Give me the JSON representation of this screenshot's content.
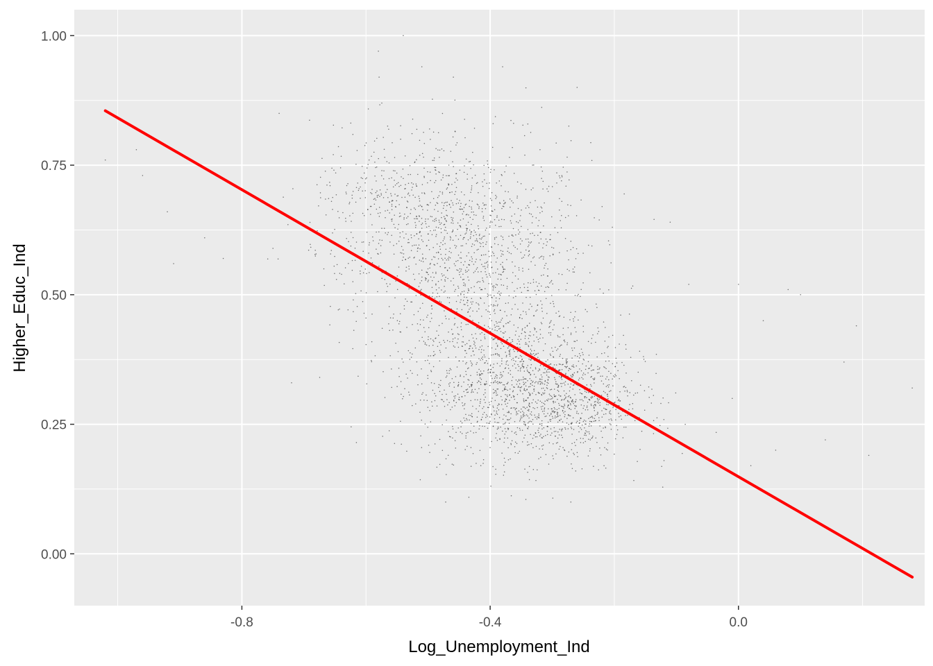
{
  "chart_data": {
    "type": "scatter",
    "title": "",
    "xlabel": "Log_Unemployment_Ind",
    "ylabel": "Higher_Educ_Ind",
    "xlim": [
      -1.07,
      0.3
    ],
    "ylim": [
      -0.1,
      1.05
    ],
    "x_ticks": [
      -0.8,
      -0.4,
      0.0
    ],
    "x_tick_labels": [
      "-0.8",
      "-0.4",
      "0.0"
    ],
    "x_minor_ticks": [
      -1.0,
      -0.6,
      -0.2,
      0.2
    ],
    "y_ticks": [
      0.0,
      0.25,
      0.5,
      0.75,
      1.0
    ],
    "y_tick_labels": [
      "0.00",
      "0.25",
      "0.50",
      "0.75",
      "1.00"
    ],
    "y_minor_ticks": [
      0.125,
      0.375,
      0.625,
      0.875
    ],
    "grid": true,
    "legend": "none",
    "panel_color": "#EBEBEB",
    "grid_color": "#FFFFFF",
    "point_color": "#333333",
    "fit_line_color": "#FF0000",
    "fit_line": {
      "x": [
        -1.02,
        0.28
      ],
      "y": [
        0.855,
        -0.045
      ]
    },
    "point_clusters": [
      {
        "cx": -0.42,
        "cy": 0.55,
        "sdx": 0.09,
        "sdy": 0.12,
        "n": 1300
      },
      {
        "cx": -0.35,
        "cy": 0.32,
        "sdx": 0.08,
        "sdy": 0.07,
        "n": 1300
      },
      {
        "cx": -0.55,
        "cy": 0.66,
        "sdx": 0.07,
        "sdy": 0.08,
        "n": 400
      },
      {
        "cx": -0.25,
        "cy": 0.28,
        "sdx": 0.05,
        "sdy": 0.05,
        "n": 300
      }
    ],
    "outlier_points": [
      {
        "x": -1.02,
        "y": 0.76
      },
      {
        "x": -0.97,
        "y": 0.78
      },
      {
        "x": -0.96,
        "y": 0.73
      },
      {
        "x": -0.92,
        "y": 0.66
      },
      {
        "x": -0.91,
        "y": 0.56
      },
      {
        "x": -0.86,
        "y": 0.61
      },
      {
        "x": -0.83,
        "y": 0.57
      },
      {
        "x": -0.74,
        "y": 0.85
      },
      {
        "x": -0.72,
        "y": 0.33
      },
      {
        "x": -0.54,
        "y": 1.0
      },
      {
        "x": -0.58,
        "y": 0.97
      },
      {
        "x": -0.51,
        "y": 0.94
      },
      {
        "x": -0.38,
        "y": 0.94
      },
      {
        "x": -0.26,
        "y": 0.9
      },
      {
        "x": -0.11,
        "y": 0.64
      },
      {
        "x": -0.08,
        "y": 0.52
      },
      {
        "x": 0.0,
        "y": 0.52
      },
      {
        "x": 0.04,
        "y": 0.45
      },
      {
        "x": 0.08,
        "y": 0.51
      },
      {
        "x": 0.1,
        "y": 0.5
      },
      {
        "x": 0.19,
        "y": 0.44
      },
      {
        "x": 0.14,
        "y": 0.22
      },
      {
        "x": 0.21,
        "y": 0.19
      },
      {
        "x": 0.28,
        "y": 0.32
      },
      {
        "x": 0.06,
        "y": 0.2
      },
      {
        "x": 0.02,
        "y": 0.17
      },
      {
        "x": 0.17,
        "y": 0.37
      },
      {
        "x": -0.01,
        "y": 0.3
      },
      {
        "x": -0.12,
        "y": 0.18
      },
      {
        "x": -0.27,
        "y": 0.1
      }
    ]
  }
}
